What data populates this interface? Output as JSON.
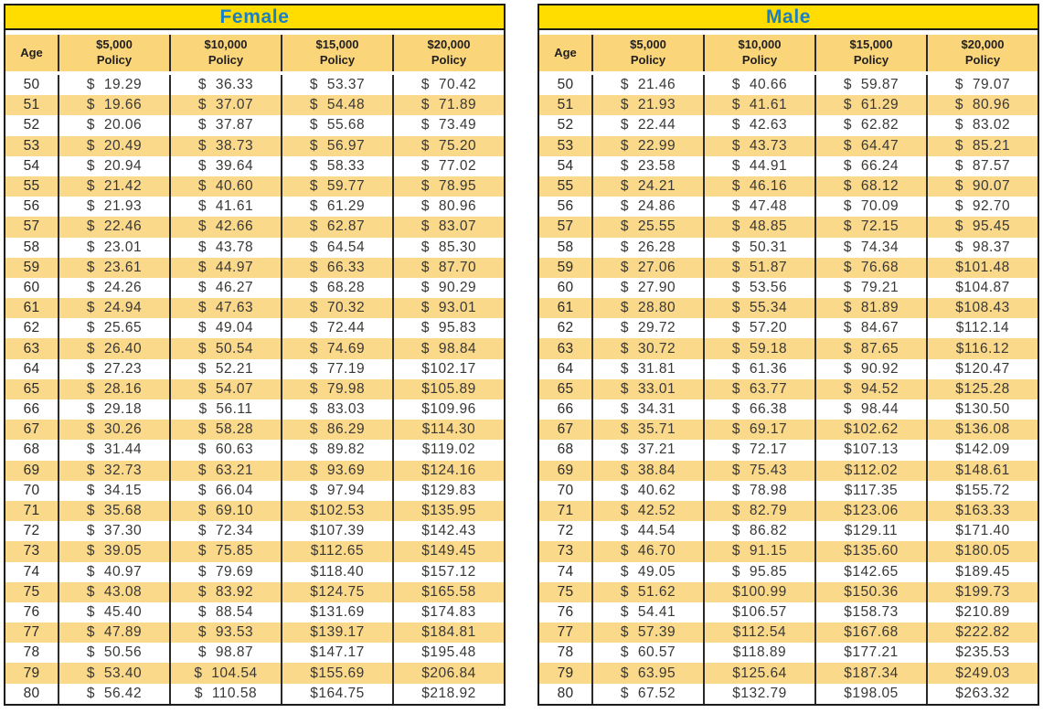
{
  "colors": {
    "title_bar_bg": "#FFDD00",
    "title_text": "#1B7FC4",
    "header_bg": "#FAD579",
    "stripe_bg": "#FAD98A",
    "row_bg": "#FFFFFF",
    "border": "#1A1A18",
    "column_line": "#2A2A28",
    "value_text": "#3A3836"
  },
  "chart_data": [
    {
      "type": "table",
      "title": "Female",
      "columns": [
        {
          "line1": "Age",
          "line2": ""
        },
        {
          "line1": "$5,000",
          "line2": "Policy"
        },
        {
          "line1": "$10,000",
          "line2": "Policy"
        },
        {
          "line1": "$15,000",
          "line2": "Policy"
        },
        {
          "line1": "$20,000",
          "line2": "Policy"
        }
      ],
      "rows": [
        [
          "50",
          "$ 19.29",
          "$ 36.33",
          "$ 53.37",
          "$ 70.42"
        ],
        [
          "51",
          "$ 19.66",
          "$ 37.07",
          "$ 54.48",
          "$ 71.89"
        ],
        [
          "52",
          "$ 20.06",
          "$ 37.87",
          "$ 55.68",
          "$ 73.49"
        ],
        [
          "53",
          "$ 20.49",
          "$ 38.73",
          "$ 56.97",
          "$ 75.20"
        ],
        [
          "54",
          "$ 20.94",
          "$ 39.64",
          "$ 58.33",
          "$ 77.02"
        ],
        [
          "55",
          "$ 21.42",
          "$ 40.60",
          "$ 59.77",
          "$ 78.95"
        ],
        [
          "56",
          "$ 21.93",
          "$ 41.61",
          "$ 61.29",
          "$ 80.96"
        ],
        [
          "57",
          "$ 22.46",
          "$ 42.66",
          "$ 62.87",
          "$ 83.07"
        ],
        [
          "58",
          "$ 23.01",
          "$ 43.78",
          "$ 64.54",
          "$ 85.30"
        ],
        [
          "59",
          "$ 23.61",
          "$ 44.97",
          "$ 66.33",
          "$ 87.70"
        ],
        [
          "60",
          "$ 24.26",
          "$ 46.27",
          "$ 68.28",
          "$ 90.29"
        ],
        [
          "61",
          "$ 24.94",
          "$ 47.63",
          "$ 70.32",
          "$ 93.01"
        ],
        [
          "62",
          "$ 25.65",
          "$ 49.04",
          "$ 72.44",
          "$ 95.83"
        ],
        [
          "63",
          "$ 26.40",
          "$ 50.54",
          "$ 74.69",
          "$ 98.84"
        ],
        [
          "64",
          "$ 27.23",
          "$ 52.21",
          "$ 77.19",
          "$102.17"
        ],
        [
          "65",
          "$ 28.16",
          "$ 54.07",
          "$ 79.98",
          "$105.89"
        ],
        [
          "66",
          "$ 29.18",
          "$ 56.11",
          "$ 83.03",
          "$109.96"
        ],
        [
          "67",
          "$ 30.26",
          "$ 58.28",
          "$ 86.29",
          "$114.30"
        ],
        [
          "68",
          "$ 31.44",
          "$ 60.63",
          "$ 89.82",
          "$119.02"
        ],
        [
          "69",
          "$ 32.73",
          "$ 63.21",
          "$ 93.69",
          "$124.16"
        ],
        [
          "70",
          "$ 34.15",
          "$ 66.04",
          "$ 97.94",
          "$129.83"
        ],
        [
          "71",
          "$ 35.68",
          "$ 69.10",
          "$102.53",
          "$135.95"
        ],
        [
          "72",
          "$ 37.30",
          "$ 72.34",
          "$107.39",
          "$142.43"
        ],
        [
          "73",
          "$ 39.05",
          "$ 75.85",
          "$112.65",
          "$149.45"
        ],
        [
          "74",
          "$ 40.97",
          "$ 79.69",
          "$118.40",
          "$157.12"
        ],
        [
          "75",
          "$ 43.08",
          "$ 83.92",
          "$124.75",
          "$165.58"
        ],
        [
          "76",
          "$ 45.40",
          "$ 88.54",
          "$131.69",
          "$174.83"
        ],
        [
          "77",
          "$ 47.89",
          "$ 93.53",
          "$139.17",
          "$184.81"
        ],
        [
          "78",
          "$ 50.56",
          "$ 98.87",
          "$147.17",
          "$195.48"
        ],
        [
          "79",
          "$ 53.40",
          "$ 104.54",
          "$155.69",
          "$206.84"
        ],
        [
          "80",
          "$ 56.42",
          "$ 110.58",
          "$164.75",
          "$218.92"
        ]
      ]
    },
    {
      "type": "table",
      "title": "Male",
      "columns": [
        {
          "line1": "Age",
          "line2": ""
        },
        {
          "line1": "$5,000",
          "line2": "Policy"
        },
        {
          "line1": "$10,000",
          "line2": "Policy"
        },
        {
          "line1": "$15,000",
          "line2": "Policy"
        },
        {
          "line1": "$20,000",
          "line2": "Policy"
        }
      ],
      "rows": [
        [
          "50",
          "$ 21.46",
          "$ 40.66",
          "$ 59.87",
          "$ 79.07"
        ],
        [
          "51",
          "$ 21.93",
          "$ 41.61",
          "$ 61.29",
          "$ 80.96"
        ],
        [
          "52",
          "$ 22.44",
          "$ 42.63",
          "$ 62.82",
          "$ 83.02"
        ],
        [
          "53",
          "$ 22.99",
          "$ 43.73",
          "$ 64.47",
          "$ 85.21"
        ],
        [
          "54",
          "$ 23.58",
          "$ 44.91",
          "$ 66.24",
          "$ 87.57"
        ],
        [
          "55",
          "$ 24.21",
          "$ 46.16",
          "$ 68.12",
          "$ 90.07"
        ],
        [
          "56",
          "$ 24.86",
          "$ 47.48",
          "$ 70.09",
          "$ 92.70"
        ],
        [
          "57",
          "$ 25.55",
          "$ 48.85",
          "$ 72.15",
          "$ 95.45"
        ],
        [
          "58",
          "$ 26.28",
          "$ 50.31",
          "$ 74.34",
          "$ 98.37"
        ],
        [
          "59",
          "$ 27.06",
          "$ 51.87",
          "$ 76.68",
          "$101.48"
        ],
        [
          "60",
          "$ 27.90",
          "$ 53.56",
          "$ 79.21",
          "$104.87"
        ],
        [
          "61",
          "$ 28.80",
          "$ 55.34",
          "$ 81.89",
          "$108.43"
        ],
        [
          "62",
          "$ 29.72",
          "$ 57.20",
          "$ 84.67",
          "$112.14"
        ],
        [
          "63",
          "$ 30.72",
          "$ 59.18",
          "$ 87.65",
          "$116.12"
        ],
        [
          "64",
          "$ 31.81",
          "$ 61.36",
          "$ 90.92",
          "$120.47"
        ],
        [
          "65",
          "$ 33.01",
          "$ 63.77",
          "$ 94.52",
          "$125.28"
        ],
        [
          "66",
          "$ 34.31",
          "$ 66.38",
          "$ 98.44",
          "$130.50"
        ],
        [
          "67",
          "$ 35.71",
          "$ 69.17",
          "$102.62",
          "$136.08"
        ],
        [
          "68",
          "$ 37.21",
          "$ 72.17",
          "$107.13",
          "$142.09"
        ],
        [
          "69",
          "$ 38.84",
          "$ 75.43",
          "$112.02",
          "$148.61"
        ],
        [
          "70",
          "$ 40.62",
          "$ 78.98",
          "$117.35",
          "$155.72"
        ],
        [
          "71",
          "$ 42.52",
          "$ 82.79",
          "$123.06",
          "$163.33"
        ],
        [
          "72",
          "$ 44.54",
          "$ 86.82",
          "$129.11",
          "$171.40"
        ],
        [
          "73",
          "$ 46.70",
          "$ 91.15",
          "$135.60",
          "$180.05"
        ],
        [
          "74",
          "$ 49.05",
          "$ 95.85",
          "$142.65",
          "$189.45"
        ],
        [
          "75",
          "$ 51.62",
          "$100.99",
          "$150.36",
          "$199.73"
        ],
        [
          "76",
          "$ 54.41",
          "$106.57",
          "$158.73",
          "$210.89"
        ],
        [
          "77",
          "$ 57.39",
          "$112.54",
          "$167.68",
          "$222.82"
        ],
        [
          "78",
          "$ 60.57",
          "$118.89",
          "$177.21",
          "$235.53"
        ],
        [
          "79",
          "$ 63.95",
          "$125.64",
          "$187.34",
          "$249.03"
        ],
        [
          "80",
          "$ 67.52",
          "$132.79",
          "$198.05",
          "$263.32"
        ]
      ]
    }
  ]
}
